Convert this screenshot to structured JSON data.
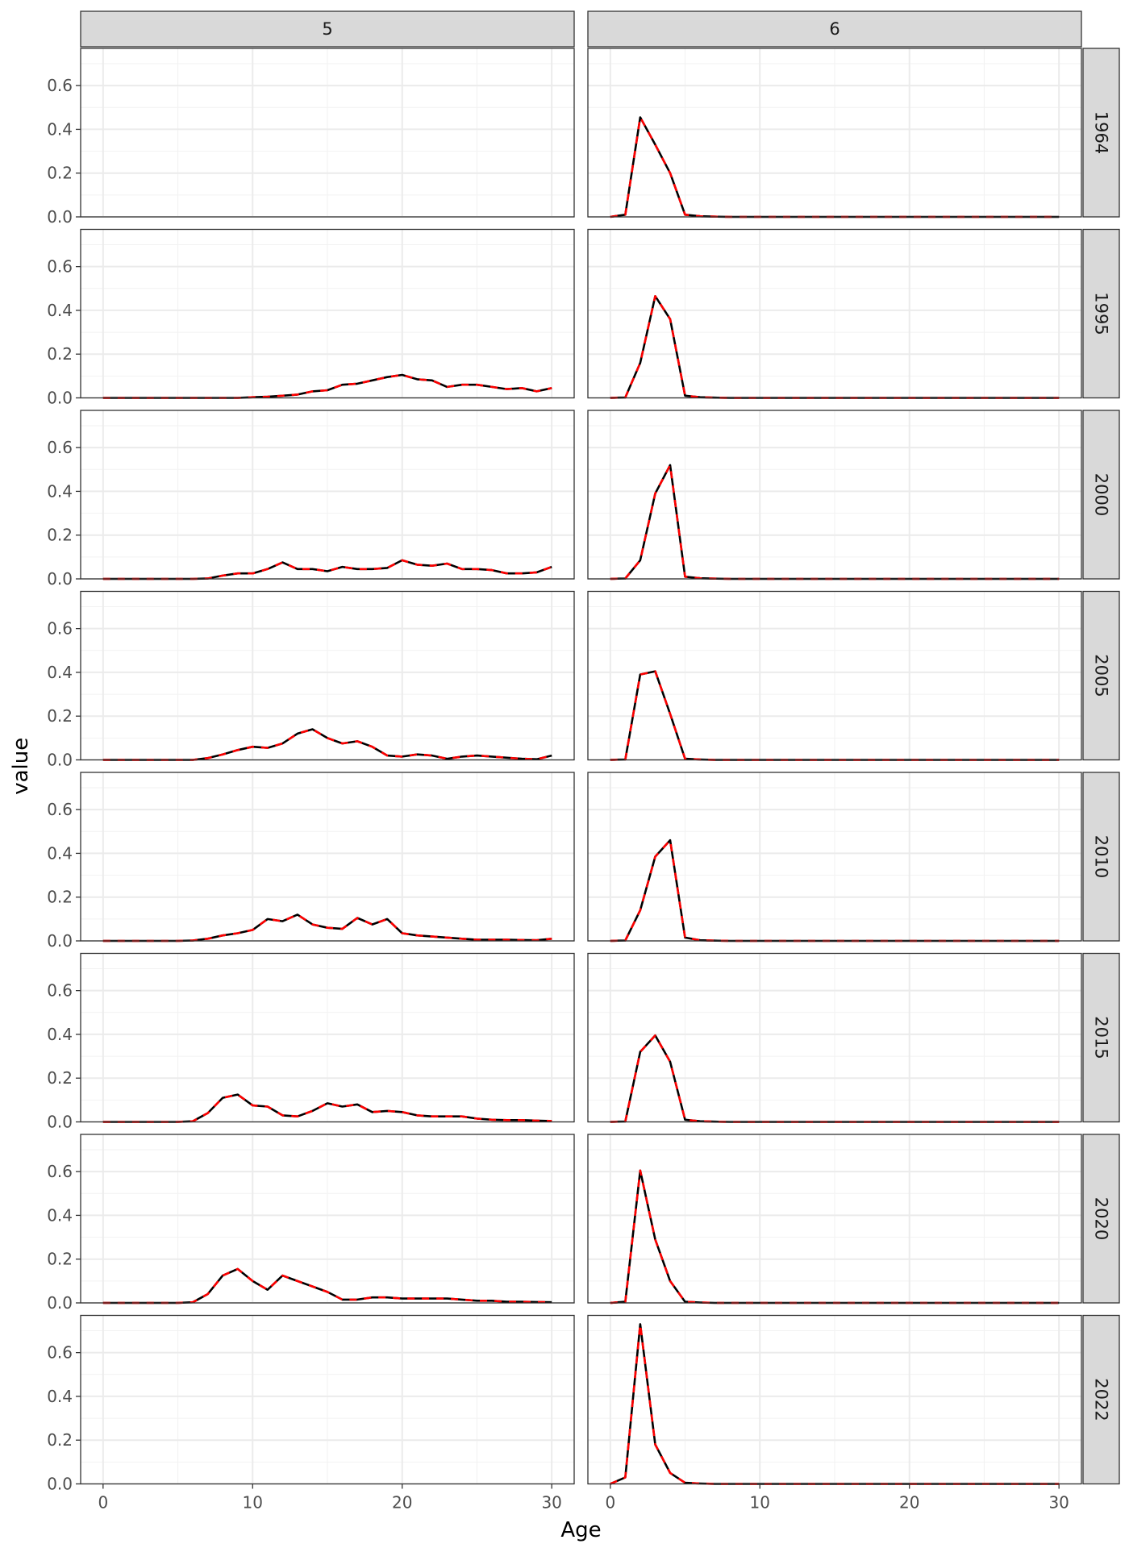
{
  "chart_data": {
    "type": "line",
    "facet_layout": "grid",
    "xlabel": "Age",
    "ylabel": "value",
    "xlim": [
      -1.5,
      31.5
    ],
    "ylim": [
      0,
      0.77
    ],
    "x_ticks": [
      0,
      10,
      20,
      30
    ],
    "y_ticks": [
      0.0,
      0.2,
      0.4,
      0.6
    ],
    "y_tick_labels": [
      "0.0",
      "0.2",
      "0.4",
      "0.6"
    ],
    "grid": true,
    "colors": {
      "observed": "#000000",
      "fitted": "#ff0000",
      "strip_fill": "#d9d9d9",
      "grid": "#ebebeb",
      "panel_border": "#333333"
    },
    "columns": [
      "5",
      "6"
    ],
    "rows": [
      "1964",
      "1995",
      "2000",
      "2005",
      "2010",
      "2015",
      "2020",
      "2022"
    ],
    "x": [
      0,
      1,
      2,
      3,
      4,
      5,
      6,
      7,
      8,
      9,
      10,
      11,
      12,
      13,
      14,
      15,
      16,
      17,
      18,
      19,
      20,
      21,
      22,
      23,
      24,
      25,
      26,
      27,
      28,
      29,
      30
    ],
    "panels": [
      {
        "column": "5",
        "row": "1964",
        "values": null
      },
      {
        "column": "6",
        "row": "1964",
        "values": [
          0,
          0.01,
          0.455,
          0.33,
          0.2,
          0.01,
          0.003,
          0.001,
          0,
          0,
          0,
          0,
          0,
          0,
          0,
          0,
          0,
          0,
          0,
          0,
          0,
          0,
          0,
          0,
          0,
          0,
          0,
          0,
          0,
          0,
          0
        ]
      },
      {
        "column": "5",
        "row": "1995",
        "values": [
          0,
          0,
          0,
          0,
          0,
          0,
          0,
          0,
          0,
          0,
          0.003,
          0.005,
          0.01,
          0.015,
          0.03,
          0.035,
          0.06,
          0.065,
          0.08,
          0.095,
          0.105,
          0.085,
          0.08,
          0.05,
          0.06,
          0.06,
          0.05,
          0.04,
          0.045,
          0.03,
          0.045
        ]
      },
      {
        "column": "6",
        "row": "1995",
        "values": [
          0,
          0.002,
          0.16,
          0.465,
          0.36,
          0.01,
          0.003,
          0.001,
          0,
          0,
          0,
          0,
          0,
          0,
          0,
          0,
          0,
          0,
          0,
          0,
          0,
          0,
          0,
          0,
          0,
          0,
          0,
          0,
          0,
          0,
          0
        ]
      },
      {
        "column": "5",
        "row": "2000",
        "values": [
          0,
          0,
          0,
          0,
          0,
          0,
          0,
          0.002,
          0.015,
          0.025,
          0.025,
          0.045,
          0.075,
          0.045,
          0.045,
          0.035,
          0.055,
          0.045,
          0.045,
          0.05,
          0.085,
          0.065,
          0.06,
          0.07,
          0.045,
          0.045,
          0.04,
          0.025,
          0.025,
          0.03,
          0.055
        ]
      },
      {
        "column": "6",
        "row": "2000",
        "values": [
          0,
          0.002,
          0.085,
          0.39,
          0.52,
          0.01,
          0.003,
          0.001,
          0,
          0,
          0,
          0,
          0,
          0,
          0,
          0,
          0,
          0,
          0,
          0,
          0,
          0,
          0,
          0,
          0,
          0,
          0,
          0,
          0,
          0,
          0
        ]
      },
      {
        "column": "5",
        "row": "2005",
        "values": [
          0,
          0,
          0,
          0,
          0,
          0,
          0,
          0.008,
          0.025,
          0.045,
          0.06,
          0.055,
          0.075,
          0.12,
          0.14,
          0.1,
          0.075,
          0.085,
          0.06,
          0.02,
          0.015,
          0.025,
          0.02,
          0.005,
          0.015,
          0.02,
          0.015,
          0.01,
          0.005,
          0.003,
          0.02
        ]
      },
      {
        "column": "6",
        "row": "2005",
        "values": [
          0,
          0.002,
          0.39,
          0.405,
          0.21,
          0.005,
          0.002,
          0,
          0,
          0,
          0,
          0,
          0,
          0,
          0,
          0,
          0,
          0,
          0,
          0,
          0,
          0,
          0,
          0,
          0,
          0,
          0,
          0,
          0,
          0,
          0
        ]
      },
      {
        "column": "5",
        "row": "2010",
        "values": [
          0,
          0,
          0,
          0,
          0,
          0,
          0.002,
          0.01,
          0.025,
          0.035,
          0.05,
          0.1,
          0.09,
          0.12,
          0.075,
          0.06,
          0.055,
          0.105,
          0.075,
          0.1,
          0.035,
          0.025,
          0.02,
          0.015,
          0.01,
          0.005,
          0.005,
          0.005,
          0.004,
          0.003,
          0.01
        ]
      },
      {
        "column": "6",
        "row": "2010",
        "values": [
          0,
          0.002,
          0.14,
          0.385,
          0.46,
          0.015,
          0.003,
          0.001,
          0,
          0,
          0,
          0,
          0,
          0,
          0,
          0,
          0,
          0,
          0,
          0,
          0,
          0,
          0,
          0,
          0,
          0,
          0,
          0,
          0,
          0,
          0
        ]
      },
      {
        "column": "5",
        "row": "2015",
        "values": [
          0,
          0,
          0,
          0,
          0,
          0,
          0.003,
          0.04,
          0.11,
          0.125,
          0.075,
          0.07,
          0.03,
          0.025,
          0.05,
          0.085,
          0.07,
          0.08,
          0.045,
          0.05,
          0.045,
          0.03,
          0.025,
          0.025,
          0.025,
          0.015,
          0.01,
          0.008,
          0.008,
          0.006,
          0.004
        ]
      },
      {
        "column": "6",
        "row": "2015",
        "values": [
          0,
          0.002,
          0.32,
          0.395,
          0.275,
          0.01,
          0.003,
          0.001,
          0,
          0,
          0,
          0,
          0,
          0,
          0,
          0,
          0,
          0,
          0,
          0,
          0,
          0,
          0,
          0,
          0,
          0,
          0,
          0,
          0,
          0,
          0
        ]
      },
      {
        "column": "5",
        "row": "2020",
        "values": [
          0,
          0,
          0,
          0,
          0,
          0,
          0.003,
          0.04,
          0.125,
          0.155,
          0.1,
          0.06,
          0.125,
          0.1,
          0.075,
          0.05,
          0.015,
          0.015,
          0.025,
          0.025,
          0.02,
          0.02,
          0.02,
          0.02,
          0.015,
          0.01,
          0.01,
          0.005,
          0.005,
          0.004,
          0.003
        ]
      },
      {
        "column": "6",
        "row": "2020",
        "values": [
          0,
          0.005,
          0.605,
          0.29,
          0.1,
          0.005,
          0.002,
          0,
          0,
          0,
          0,
          0,
          0,
          0,
          0,
          0,
          0,
          0,
          0,
          0,
          0,
          0,
          0,
          0,
          0,
          0,
          0,
          0,
          0,
          0,
          0
        ]
      },
      {
        "column": "5",
        "row": "2022",
        "values": null
      },
      {
        "column": "6",
        "row": "2022",
        "values": [
          0,
          0.03,
          0.73,
          0.18,
          0.05,
          0.005,
          0.002,
          0,
          0,
          0,
          0,
          0,
          0,
          0,
          0,
          0,
          0,
          0,
          0,
          0,
          0,
          0,
          0,
          0,
          0,
          0,
          0,
          0,
          0,
          0,
          0
        ]
      }
    ]
  }
}
